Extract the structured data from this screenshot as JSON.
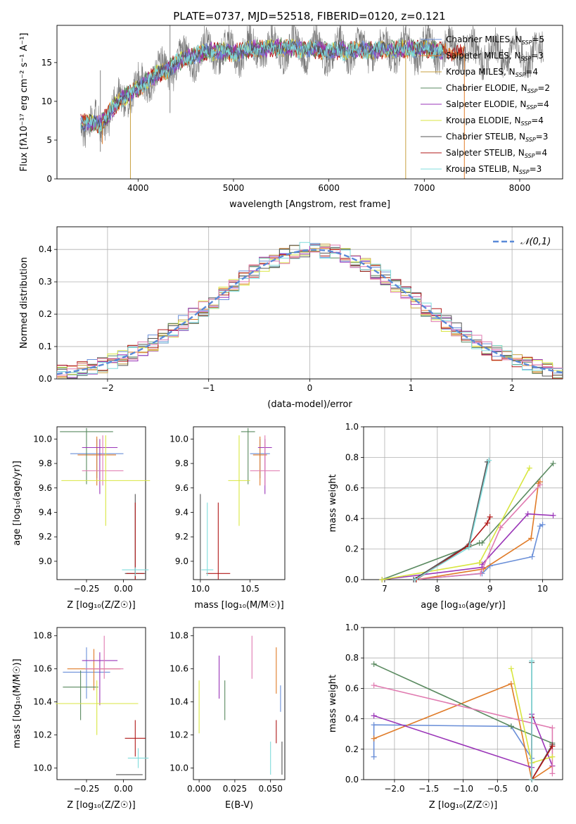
{
  "figure_title": "PLATE=0737, MJD=52518, FIBERID=0120, z=0.121",
  "colors": {
    "Chabrier MILES": "#6a8fd8",
    "Salpeter MILES": "#e07b28",
    "Kroupa MILES": "#c8a040",
    "Chabrier ELODIE": "#5a8a60",
    "Salpeter ELODIE": "#9a35b8",
    "Kroupa ELODIE": "#d8e640",
    "Chabrier STELIB": "#555555",
    "Salpeter STELIB": "#b01818",
    "Kroupa STELIB": "#80dcdc",
    "pink": "#e07ab0",
    "normal_curve": "#5a8ad8",
    "grid": "#b0b0b0"
  },
  "chart_data": [
    {
      "id": "spectrum",
      "type": "line",
      "title": "PLATE=0737, MJD=52518, FIBERID=0120, z=0.121",
      "xlabel": "wavelength [Angstrom, rest frame]",
      "ylabel": "Flux [fλ10⁻¹⁷ erg cm⁻² s⁻¹ A⁻¹]",
      "xlim": [
        3150,
        8450
      ],
      "ylim": [
        0,
        19.8
      ],
      "xticks": [
        4000,
        5000,
        6000,
        7000,
        8000
      ],
      "yticks": [
        0,
        5,
        10,
        15
      ],
      "grid": false,
      "legend_position": "top-right",
      "series": [
        {
          "name": "Chabrier MILES, N_SSP=5",
          "color": "#6a8fd8"
        },
        {
          "name": "Salpeter MILES, N_SSP=3",
          "color": "#e07b28"
        },
        {
          "name": "Kroupa MILES, N_SSP=4",
          "color": "#c8a040"
        },
        {
          "name": "Chabrier ELODIE, N_SSP=2",
          "color": "#5a8a60"
        },
        {
          "name": "Salpeter ELODIE, N_SSP=4",
          "color": "#9a35b8"
        },
        {
          "name": "Kroupa ELODIE, N_SSP=4",
          "color": "#d8e640"
        },
        {
          "name": "Chabrier STELIB, N_SSP=3",
          "color": "#555555"
        },
        {
          "name": "Salpeter STELIB, N_SSP=4",
          "color": "#b01818"
        },
        {
          "name": "Kroupa STELIB, N_SSP=3",
          "color": "#80dcdc"
        }
      ],
      "continuum": {
        "x": [
          3400,
          3600,
          3700,
          3800,
          3900,
          4000,
          4100,
          4200,
          4300,
          4400,
          4600,
          4800,
          5000,
          5200,
          5500,
          6000,
          6500,
          7000,
          7400
        ],
        "y": [
          7.5,
          7.0,
          8.5,
          10.0,
          11.0,
          11.5,
          12.8,
          13.5,
          14.0,
          15.0,
          16.0,
          16.5,
          16.3,
          16.7,
          17.0,
          16.5,
          16.6,
          16.8,
          16.2
        ]
      },
      "data_spectrum_xrange": [
        3400,
        8250
      ],
      "dropouts": [
        {
          "x": 3625,
          "y_to": 4.5,
          "color": "#e07b28"
        },
        {
          "x": 3920,
          "y_to": 0,
          "color": "#c8a040"
        },
        {
          "x": 6805,
          "y_to": 0,
          "color": "#c8a040"
        },
        {
          "x": 7420,
          "y_to": 0,
          "color": "#e07b28"
        }
      ],
      "spikes": [
        {
          "x": 3605,
          "y_top": 14.0,
          "y_bot": 3.5
        },
        {
          "x": 4335,
          "y_top": 19.8,
          "y_bot": 8.5
        }
      ]
    },
    {
      "id": "residual-histogram",
      "type": "bar",
      "xlabel": "(data-model)/error",
      "ylabel": "Normed distribution",
      "xlim": [
        -2.5,
        2.5
      ],
      "ylim": [
        0,
        0.47
      ],
      "xticks": [
        -2,
        -1,
        0,
        1,
        2
      ],
      "yticks": [
        0.0,
        0.1,
        0.2,
        0.3,
        0.4
      ],
      "grid": true,
      "legend": [
        "𝒩(0,1)"
      ],
      "legend_position": "top-right",
      "bin_width": 0.1,
      "bins_from": -2.5,
      "bins_to": 2.5
    },
    {
      "id": "age-vs-Z",
      "type": "scatter",
      "xlabel": "Z [log₁₀(Z/Z☉)]",
      "ylabel": "age  [log₁₀(age/yr)]",
      "xlim": [
        -0.45,
        0.15
      ],
      "ylim": [
        8.85,
        10.1
      ],
      "xticks": [
        -0.25,
        0.0
      ],
      "xtick_labels": [
        "−0.25",
        "0.00"
      ],
      "yticks": [
        9.0,
        9.2,
        9.4,
        9.6,
        9.8,
        10.0
      ],
      "errorbars": [
        {
          "x": -0.18,
          "xerr": [
            0.18,
            0.18
          ],
          "y": 9.88,
          "yerr": [
            0.2,
            0.12
          ],
          "color": "#6a8fd8"
        },
        {
          "x": -0.18,
          "xerr": [
            0.13,
            0.13
          ],
          "y": 9.87,
          "yerr": [
            0.25,
            0.15
          ],
          "color": "#e07b28"
        },
        {
          "x": -0.25,
          "xerr": [
            0.18,
            0.18
          ],
          "y": 10.06,
          "yerr": [
            0.43,
            0.03
          ],
          "color": "#5a8a60"
        },
        {
          "x": -0.16,
          "xerr": [
            0.12,
            0.12
          ],
          "y": 9.93,
          "yerr": [
            0.38,
            0.07
          ],
          "color": "#9a35b8"
        },
        {
          "x": -0.14,
          "xerr": [
            0.14,
            0.14
          ],
          "y": 9.74,
          "yerr": [
            0.12,
            0.29
          ],
          "color": "#e07ab0"
        },
        {
          "x": -0.12,
          "xerr": [
            0.3,
            0.3
          ],
          "y": 9.66,
          "yerr": [
            0.37,
            0.37
          ],
          "color": "#d8e640"
        },
        {
          "x": 0.08,
          "xerr": [
            0.07,
            0.07
          ],
          "y": 8.9,
          "yerr": [
            0.05,
            0.65
          ],
          "color": "#555555"
        },
        {
          "x": 0.08,
          "xerr": [
            0.06,
            0.06
          ],
          "y": 8.9,
          "yerr": [
            0.05,
            0.58
          ],
          "color": "#b01818"
        },
        {
          "x": 0.08,
          "xerr": [
            0.09,
            0.09
          ],
          "y": 8.93,
          "yerr": [
            0.05,
            0.02
          ],
          "color": "#80dcdc"
        }
      ]
    },
    {
      "id": "age-vs-mass",
      "type": "scatter",
      "xlabel": "mass [log₁₀(M/M☉)]",
      "ylabel": "",
      "xlim": [
        9.93,
        10.85
      ],
      "ylim": [
        8.85,
        10.1
      ],
      "xticks": [
        10.0,
        10.5
      ],
      "xtick_labels": [
        "10.0",
        "10.5"
      ],
      "yticks": [
        9.0,
        9.2,
        9.4,
        9.6,
        9.8,
        10.0
      ],
      "errorbars": [
        {
          "x": 10.6,
          "xerr": [
            0.1,
            0.1
          ],
          "y": 9.88,
          "yerr": [
            0.2,
            0.12
          ],
          "color": "#6a8fd8"
        },
        {
          "x": 10.6,
          "xerr": [
            0.07,
            0.07
          ],
          "y": 9.87,
          "yerr": [
            0.25,
            0.15
          ],
          "color": "#e07b28"
        },
        {
          "x": 10.48,
          "xerr": [
            0.07,
            0.07
          ],
          "y": 10.06,
          "yerr": [
            0.43,
            0.03
          ],
          "color": "#5a8a60"
        },
        {
          "x": 10.65,
          "xerr": [
            0.07,
            0.07
          ],
          "y": 9.93,
          "yerr": [
            0.38,
            0.07
          ],
          "color": "#9a35b8"
        },
        {
          "x": 10.65,
          "xerr": [
            0.15,
            0.15
          ],
          "y": 9.74,
          "yerr": [
            0.12,
            0.29
          ],
          "color": "#e07ab0"
        },
        {
          "x": 10.39,
          "xerr": [
            0.11,
            0.11
          ],
          "y": 9.66,
          "yerr": [
            0.37,
            0.37
          ],
          "color": "#d8e640"
        },
        {
          "x": 10.0,
          "xerr": [
            0.0,
            0.0
          ],
          "y": 8.9,
          "yerr": [
            0.05,
            0.65
          ],
          "color": "#555555"
        },
        {
          "x": 10.18,
          "xerr": [
            0.12,
            0.12
          ],
          "y": 8.9,
          "yerr": [
            0.05,
            0.58
          ],
          "color": "#b01818"
        },
        {
          "x": 10.07,
          "xerr": [
            0.06,
            0.06
          ],
          "y": 8.93,
          "yerr": [
            0.05,
            0.55
          ],
          "color": "#80dcdc"
        }
      ]
    },
    {
      "id": "massweight-vs-age",
      "type": "line",
      "xlabel": "age  [log₁₀(age/yr)]",
      "ylabel": "mass weight",
      "xlim": [
        6.6,
        10.38
      ],
      "ylim": [
        0,
        1.0
      ],
      "xticks": [
        7,
        8,
        9,
        10
      ],
      "yticks": [
        0.0,
        0.2,
        0.4,
        0.6,
        0.8,
        1.0
      ],
      "grid": true,
      "series": [
        {
          "color": "#6a8fd8",
          "x": [
            7.55,
            8.85,
            9.0,
            9.8,
            9.95,
            10.0
          ],
          "y": [
            0.0,
            0.04,
            0.09,
            0.15,
            0.35,
            0.36
          ]
        },
        {
          "color": "#e07b28",
          "x": [
            7.6,
            8.88,
            9.78,
            9.92,
            9.95
          ],
          "y": [
            0.0,
            0.07,
            0.27,
            0.63,
            0.64
          ]
        },
        {
          "color": "#5a8a60",
          "x": [
            6.95,
            8.8,
            8.85,
            10.2
          ],
          "y": [
            0.0,
            0.24,
            0.24,
            0.76
          ]
        },
        {
          "color": "#9a35b8",
          "x": [
            6.95,
            8.85,
            8.85,
            9.72,
            10.2
          ],
          "y": [
            0.0,
            0.08,
            0.1,
            0.43,
            0.42
          ]
        },
        {
          "color": "#e07ab0",
          "x": [
            7.55,
            8.82,
            9.2,
            9.95
          ],
          "y": [
            0.0,
            0.04,
            0.34,
            0.62
          ]
        },
        {
          "color": "#d8e640",
          "x": [
            6.95,
            8.8,
            9.75
          ],
          "y": [
            0.0,
            0.11,
            0.73
          ]
        },
        {
          "color": "#555555",
          "x": [
            7.55,
            8.6,
            8.95
          ],
          "y": [
            0.0,
            0.23,
            0.77
          ]
        },
        {
          "color": "#b01818",
          "x": [
            7.6,
            8.58,
            8.95,
            9.0
          ],
          "y": [
            0.0,
            0.22,
            0.37,
            0.41
          ]
        },
        {
          "color": "#80dcdc",
          "x": [
            7.58,
            8.6,
            8.98
          ],
          "y": [
            0.0,
            0.21,
            0.78
          ]
        }
      ]
    },
    {
      "id": "mass-vs-Z",
      "type": "scatter",
      "xlabel": "Z [log₁₀(Z/Z☉)]",
      "ylabel": "mass [log₁₀(M/M☉)]",
      "xlim": [
        -0.45,
        0.15
      ],
      "ylim": [
        9.93,
        10.85
      ],
      "xticks": [
        -0.25,
        0.0
      ],
      "xtick_labels": [
        "−0.25",
        "0.00"
      ],
      "yticks": [
        10.0,
        10.2,
        10.4,
        10.6,
        10.8
      ],
      "errorbars": [
        {
          "x": -0.25,
          "xerr": [
            0.16,
            0.16
          ],
          "y": 10.58,
          "yerr": [
            0.16,
            0.15
          ],
          "color": "#6a8fd8"
        },
        {
          "x": -0.2,
          "xerr": [
            0.18,
            0.18
          ],
          "y": 10.6,
          "yerr": [
            0.13,
            0.12
          ],
          "color": "#e07b28"
        },
        {
          "x": -0.29,
          "xerr": [
            0.12,
            0.12
          ],
          "y": 10.49,
          "yerr": [
            0.2,
            0.1
          ],
          "color": "#5a8a60"
        },
        {
          "x": -0.16,
          "xerr": [
            0.12,
            0.12
          ],
          "y": 10.65,
          "yerr": [
            0.27,
            0.05
          ],
          "color": "#9a35b8"
        },
        {
          "x": -0.13,
          "xerr": [
            0.13,
            0.13
          ],
          "y": 10.6,
          "yerr": [
            0.06,
            0.2
          ],
          "color": "#e07ab0"
        },
        {
          "x": -0.18,
          "xerr": [
            0.28,
            0.28
          ],
          "y": 10.39,
          "yerr": [
            0.19,
            0.14
          ],
          "color": "#d8e640"
        },
        {
          "x": 0.04,
          "xerr": [
            0.09,
            0.09
          ],
          "y": 9.96,
          "yerr": [
            0.0,
            0.0
          ],
          "color": "#555555"
        },
        {
          "x": 0.08,
          "xerr": [
            0.07,
            0.07
          ],
          "y": 10.18,
          "yerr": [
            0.11,
            0.11
          ],
          "color": "#b01818"
        },
        {
          "x": 0.1,
          "xerr": [
            0.07,
            0.07
          ],
          "y": 10.06,
          "yerr": [
            0.06,
            0.06
          ],
          "color": "#80dcdc"
        }
      ]
    },
    {
      "id": "mass-vs-EBV",
      "type": "scatter",
      "xlabel": "E(B-V)",
      "ylabel": "",
      "xlim": [
        -0.004,
        0.06
      ],
      "ylim": [
        9.93,
        10.85
      ],
      "xticks": [
        0.0,
        0.025,
        0.05
      ],
      "xtick_labels": [
        "0.000",
        "0.025",
        "0.050"
      ],
      "yticks": [
        10.0,
        10.2,
        10.4,
        10.6,
        10.8
      ],
      "errorbars": [
        {
          "x": 0.0,
          "y": 10.37,
          "yerr": [
            0.16,
            0.16
          ],
          "color": "#d8e640"
        },
        {
          "x": 0.014,
          "y": 10.55,
          "yerr": [
            0.13,
            0.13
          ],
          "color": "#9a35b8"
        },
        {
          "x": 0.018,
          "y": 10.41,
          "yerr": [
            0.12,
            0.12
          ],
          "color": "#5a8a60"
        },
        {
          "x": 0.037,
          "y": 10.67,
          "yerr": [
            0.13,
            0.13
          ],
          "color": "#e07ab0"
        },
        {
          "x": 0.05,
          "y": 10.06,
          "yerr": [
            0.1,
            0.1
          ],
          "color": "#80dcdc"
        },
        {
          "x": 0.054,
          "y": 10.59,
          "yerr": [
            0.14,
            0.14
          ],
          "color": "#e07b28"
        },
        {
          "x": 0.054,
          "y": 10.22,
          "yerr": [
            0.07,
            0.07
          ],
          "color": "#b01818"
        },
        {
          "x": 0.058,
          "y": 10.06,
          "yerr": [
            0.1,
            0.1
          ],
          "color": "#555555"
        },
        {
          "x": 0.057,
          "y": 10.42,
          "yerr": [
            0.08,
            0.08
          ],
          "color": "#6a8fd8"
        }
      ]
    },
    {
      "id": "massweight-vs-Z",
      "type": "line",
      "xlabel": "Z [log₁₀(Z/Z☉)]",
      "ylabel": "mass weight",
      "xlim": [
        -2.45,
        0.45
      ],
      "ylim": [
        0,
        1.0
      ],
      "xticks": [
        -2.0,
        -1.5,
        -1.0,
        -0.5,
        0.0
      ],
      "xtick_labels": [
        "−2.0",
        "−1.5",
        "−1.0",
        "−0.5",
        "0.0"
      ],
      "yticks": [
        0.0,
        0.2,
        0.4,
        0.6,
        0.8,
        1.0
      ],
      "grid": true,
      "series": [
        {
          "color": "#6a8fd8",
          "x": [
            -2.3,
            -2.3,
            -0.3,
            0.0,
            0.0
          ],
          "y": [
            0.15,
            0.36,
            0.35,
            0.14,
            0.0
          ]
        },
        {
          "color": "#e07b28",
          "x": [
            -2.3,
            -0.3,
            0.0,
            0.3
          ],
          "y": [
            0.27,
            0.63,
            0.0,
            0.09
          ]
        },
        {
          "color": "#5a8a60",
          "x": [
            -2.3,
            -0.3,
            0.3
          ],
          "y": [
            0.76,
            0.35,
            0.24
          ]
        },
        {
          "color": "#9a35b8",
          "x": [
            -2.3,
            0.0,
            0.0,
            0.3
          ],
          "y": [
            0.42,
            0.08,
            0.43,
            0.09
          ]
        },
        {
          "color": "#e07ab0",
          "x": [
            -2.3,
            0.3,
            0.3
          ],
          "y": [
            0.62,
            0.34,
            0.04
          ]
        },
        {
          "color": "#d8e640",
          "x": [
            -0.3,
            0.0,
            0.3
          ],
          "y": [
            0.73,
            0.11,
            0.15
          ]
        },
        {
          "color": "#555555",
          "x": [
            0.0,
            0.0,
            0.3
          ],
          "y": [
            0.77,
            0.0,
            0.23
          ]
        },
        {
          "color": "#b01818",
          "x": [
            0.0,
            0.0,
            0.3
          ],
          "y": [
            0.41,
            0.0,
            0.22
          ]
        },
        {
          "color": "#80dcdc",
          "x": [
            0.0,
            0.0
          ],
          "y": [
            0.78,
            0.0
          ]
        }
      ]
    }
  ]
}
